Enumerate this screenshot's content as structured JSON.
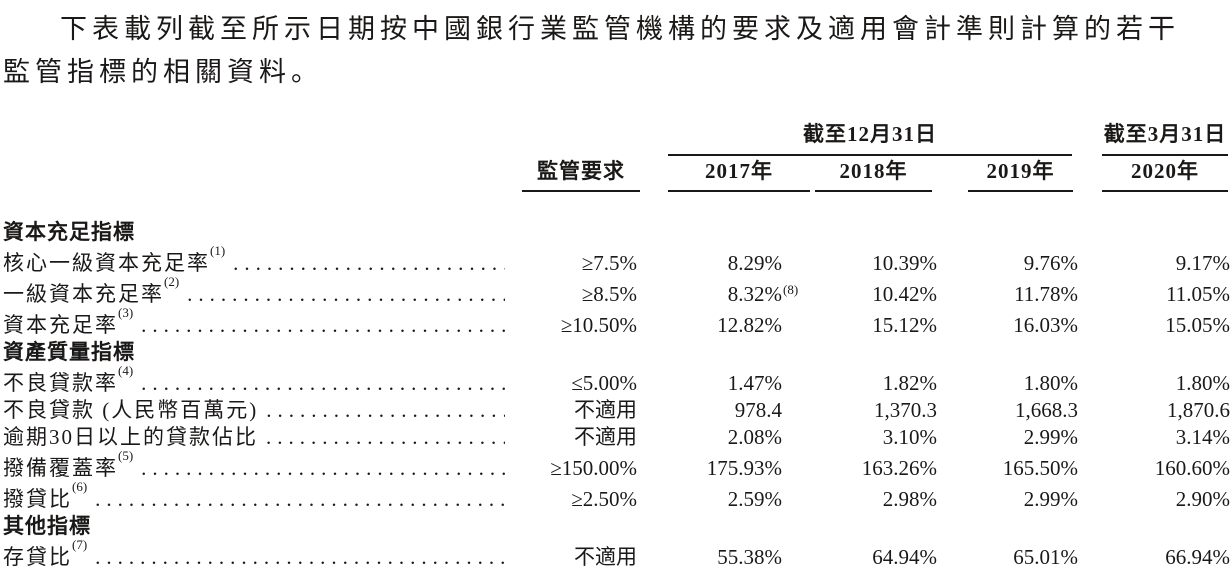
{
  "page": {
    "background_color": "#ffffff",
    "text_color": "#1b1918",
    "rule_color": "#1b1918"
  },
  "intro_paragraph": "下表載列截至所示日期按中國銀行業監管機構的要求及適用會計準則計算的若干監管指標的相關資料。",
  "table": {
    "group_headers": [
      {
        "label": "截至12月31日"
      },
      {
        "label": "截至3月31日"
      }
    ],
    "column_headers": [
      "監管要求",
      "2017年",
      "2018年",
      "2019年",
      "2020年"
    ],
    "rows": [
      {
        "type": "section",
        "label": "資本充足指標",
        "sup": "",
        "values": null,
        "value_sups": null
      },
      {
        "type": "data",
        "label": "核心一級資本充足率",
        "sup": "(1)",
        "values": [
          "≥7.5%",
          "8.29%",
          "10.39%",
          "9.76%",
          "9.17%"
        ],
        "value_sups": [
          "",
          "",
          "",
          "",
          ""
        ]
      },
      {
        "type": "data",
        "label": "一級資本充足率",
        "sup": "(2)",
        "values": [
          "≥8.5%",
          "8.32%",
          "10.42%",
          "11.78%",
          "11.05%"
        ],
        "value_sups": [
          "",
          "(8)",
          "",
          "",
          ""
        ]
      },
      {
        "type": "data",
        "label": "資本充足率",
        "sup": "(3)",
        "values": [
          "≥10.50%",
          "12.82%",
          "15.12%",
          "16.03%",
          "15.05%"
        ],
        "value_sups": [
          "",
          "",
          "",
          "",
          ""
        ]
      },
      {
        "type": "section",
        "label": "資產質量指標",
        "sup": "",
        "values": null,
        "value_sups": null
      },
      {
        "type": "data",
        "label": "不良貸款率",
        "sup": "(4)",
        "values": [
          "≤5.00%",
          "1.47%",
          "1.82%",
          "1.80%",
          "1.80%"
        ],
        "value_sups": [
          "",
          "",
          "",
          "",
          ""
        ]
      },
      {
        "type": "data",
        "label": "不良貸款 (人民幣百萬元)",
        "sup": "",
        "values": [
          "不適用",
          "978.4",
          "1,370.3",
          "1,668.3",
          "1,870.6"
        ],
        "value_sups": [
          "",
          "",
          "",
          "",
          ""
        ]
      },
      {
        "type": "data",
        "label": "逾期30日以上的貸款佔比",
        "sup": "",
        "values": [
          "不適用",
          "2.08%",
          "3.10%",
          "2.99%",
          "3.14%"
        ],
        "value_sups": [
          "",
          "",
          "",
          "",
          ""
        ]
      },
      {
        "type": "data",
        "label": "撥備覆蓋率",
        "sup": "(5)",
        "values": [
          "≥150.00%",
          "175.93%",
          "163.26%",
          "165.50%",
          "160.60%"
        ],
        "value_sups": [
          "",
          "",
          "",
          "",
          ""
        ]
      },
      {
        "type": "data",
        "label": "撥貸比",
        "sup": "(6)",
        "values": [
          "≥2.50%",
          "2.59%",
          "2.98%",
          "2.99%",
          "2.90%"
        ],
        "value_sups": [
          "",
          "",
          "",
          "",
          ""
        ]
      },
      {
        "type": "section",
        "label": "其他指標",
        "sup": "",
        "values": null,
        "value_sups": null
      },
      {
        "type": "data",
        "label": "存貸比",
        "sup": "(7)",
        "values": [
          "不適用",
          "55.38%",
          "64.94%",
          "65.01%",
          "66.94%"
        ],
        "value_sups": [
          "",
          "",
          "",
          "",
          ""
        ]
      }
    ]
  }
}
